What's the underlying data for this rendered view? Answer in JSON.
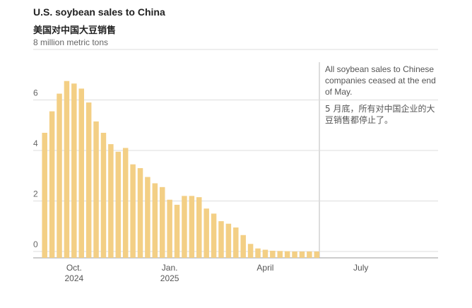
{
  "chart_data": {
    "type": "bar",
    "title": "U.S. soybean sales to China",
    "subtitle": "美国对中国大豆销售",
    "annotation": "All soybean sales to Chinese companies ceased at the end of May.",
    "annotation_zh": "5 月底，所有对中国企业的大豆销售都停止了。",
    "categories": [
      null,
      null,
      null,
      null,
      "Oct. 2024",
      null,
      null,
      null,
      null,
      null,
      null,
      null,
      null,
      null,
      null,
      null,
      null,
      "Jan. 2025",
      null,
      null,
      null,
      null,
      null,
      null,
      null,
      null,
      null,
      null,
      null,
      null,
      "April",
      null,
      null,
      null,
      null,
      null,
      null,
      null,
      null,
      null,
      null,
      null,
      null,
      "July",
      null,
      null,
      null,
      null,
      null,
      null,
      null,
      null,
      null,
      null
    ],
    "values": [
      4.7,
      5.55,
      6.25,
      6.75,
      6.65,
      6.45,
      5.9,
      5.15,
      4.7,
      4.25,
      3.95,
      4.1,
      3.45,
      3.3,
      2.95,
      2.7,
      2.55,
      2.05,
      1.85,
      2.2,
      2.2,
      2.15,
      1.7,
      1.5,
      1.2,
      1.1,
      0.95,
      0.65,
      0.3,
      0.12,
      0.07,
      0.03,
      0.02,
      0.01,
      0,
      0,
      0,
      0,
      null,
      null,
      null,
      null,
      null,
      null,
      null,
      null,
      null,
      null,
      null,
      null,
      null,
      null,
      null,
      null
    ],
    "color": "#f3cf85",
    "ylim": [
      0,
      8
    ],
    "yticks": [
      0,
      2,
      4,
      6,
      {
        "value": 8,
        "label": "8 million metric tons"
      }
    ],
    "grid": true
  }
}
